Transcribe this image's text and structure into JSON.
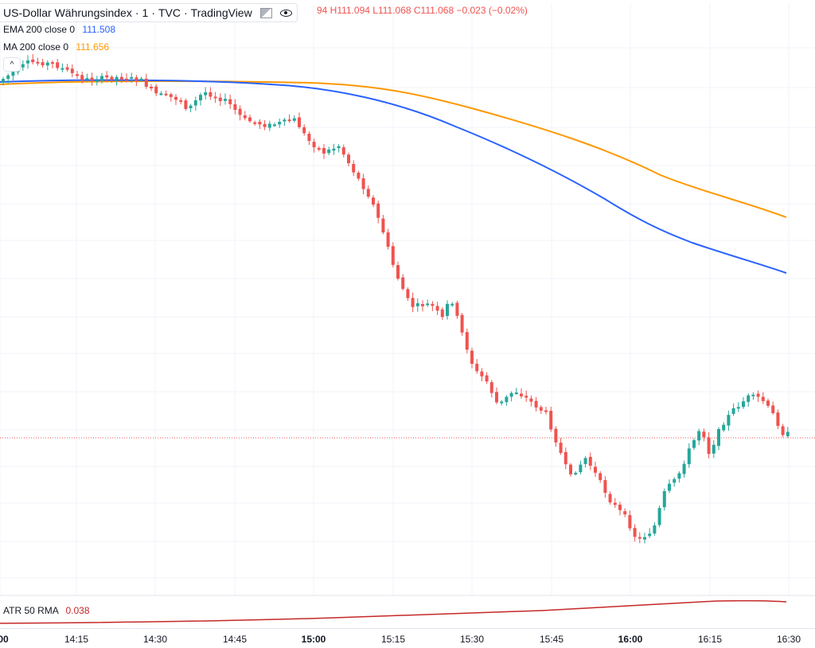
{
  "header": {
    "symbol": "US-Dollar Währungsindex",
    "interval": "1",
    "source": "TVC",
    "platform": "TradingView",
    "ohlc_text": "94 H111.094 L111.068 C111.068 −0.023 (−0.02%)"
  },
  "indicators": [
    {
      "name": "EMA 200 close 0",
      "value": "111.508",
      "color": "#2962ff"
    },
    {
      "name": "MA 200 close 0",
      "value": "111.656",
      "color": "#ff9800"
    }
  ],
  "atr": {
    "name": "ATR 50 RMA",
    "value": "0.038",
    "color": "#c62828"
  },
  "colors": {
    "up": "#26a69a",
    "down": "#ef5350",
    "grid": "#f0f3fa"
  },
  "icons": [
    "flag-icon",
    "eye-icon",
    "gear-icon",
    "more-icon",
    "collapse-icon"
  ],
  "time_axis": [
    {
      "label": "00",
      "bold": true
    },
    {
      "label": "14:15",
      "bold": false
    },
    {
      "label": "14:30",
      "bold": false
    },
    {
      "label": "14:45",
      "bold": false
    },
    {
      "label": "15:00",
      "bold": true
    },
    {
      "label": "15:15",
      "bold": false
    },
    {
      "label": "15:30",
      "bold": false
    },
    {
      "label": "15:45",
      "bold": false
    },
    {
      "label": "16:00",
      "bold": true
    },
    {
      "label": "16:15",
      "bold": false
    },
    {
      "label": "16:30",
      "bold": false
    }
  ]
}
